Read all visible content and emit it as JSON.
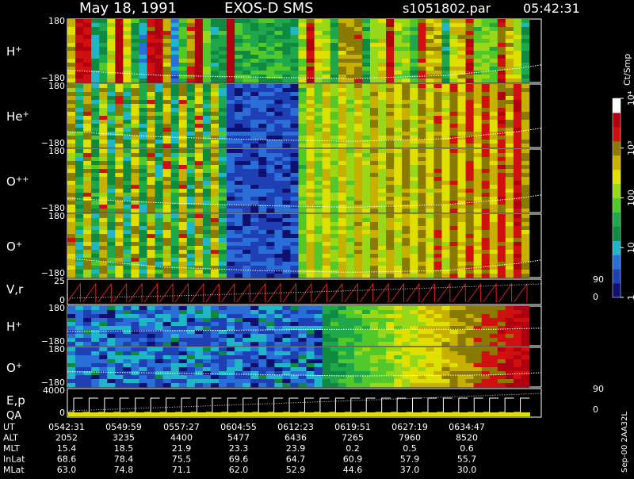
{
  "header": {
    "date": "May 18, 1991",
    "instrument": "EXOS-D SMS",
    "file": "s1051802.par",
    "time": "05:42:31"
  },
  "colorbar": {
    "unit": "Ct/Smp",
    "ticks": [
      {
        "label": "1",
        "value": 1
      },
      {
        "label": "10",
        "value": 10
      },
      {
        "label": "100",
        "value": 100
      },
      {
        "label": "10³",
        "value": 1000
      },
      {
        "label": "10⁴",
        "value": 10000
      }
    ]
  },
  "chart_data": {
    "type": "heatmap",
    "panels": [
      {
        "id": "h_plus_1",
        "label": "H",
        "sup": "+",
        "ytop": "180",
        "ybot": "−180",
        "ymax": 180,
        "ymin": -180,
        "intensity": "high",
        "curve": [
          [
            0,
            -110
          ],
          [
            20,
            -140
          ],
          [
            40,
            -150
          ],
          [
            60,
            -158
          ],
          [
            80,
            -140
          ],
          [
            95,
            -100
          ],
          [
            100,
            -80
          ]
        ]
      },
      {
        "id": "he_plus",
        "label": "He",
        "sup": "+",
        "ytop": "180",
        "ybot": "−180",
        "ymax": 180,
        "ymin": -180,
        "intensity": "mid",
        "curve": [
          [
            0,
            -90
          ],
          [
            20,
            -120
          ],
          [
            40,
            -135
          ],
          [
            60,
            -145
          ],
          [
            80,
            -130
          ],
          [
            95,
            -90
          ],
          [
            100,
            -70
          ]
        ]
      },
      {
        "id": "o_plusplus",
        "label": "O",
        "sup": "++",
        "ytop": "180",
        "ybot": "−180",
        "ymax": 180,
        "ymin": -180,
        "intensity": "mid",
        "curve": [
          [
            0,
            -100
          ],
          [
            20,
            -125
          ],
          [
            40,
            -140
          ],
          [
            60,
            -150
          ],
          [
            80,
            -135
          ],
          [
            95,
            -100
          ],
          [
            100,
            -80
          ]
        ]
      },
      {
        "id": "o_plus_1",
        "label": "O",
        "sup": "+",
        "ytop": "180",
        "ybot": "−180",
        "ymax": 180,
        "ymin": -180,
        "intensity": "mid",
        "curve": [
          [
            0,
            -70
          ],
          [
            20,
            -120
          ],
          [
            40,
            -140
          ],
          [
            60,
            -150
          ],
          [
            80,
            -140
          ],
          [
            95,
            -100
          ],
          [
            100,
            -80
          ]
        ]
      },
      {
        "id": "vr",
        "label": "V,r",
        "sup": "",
        "ytop": "25",
        "ybot": "0",
        "ytop_r": "90",
        "ybot_r": "0",
        "type": "line"
      },
      {
        "id": "h_plus_2",
        "label": "H",
        "sup": "+",
        "ytop": "180",
        "ybot": "−180",
        "ymax": 180,
        "ymin": -180,
        "intensity": "low",
        "curve": [
          [
            0,
            -50
          ],
          [
            30,
            -40
          ],
          [
            60,
            -30
          ],
          [
            90,
            -30
          ],
          [
            100,
            -20
          ]
        ]
      },
      {
        "id": "o_plus_2",
        "label": "O",
        "sup": "+",
        "ytop": "180",
        "ybot": "−180",
        "ymax": 180,
        "ymin": -180,
        "intensity": "low",
        "curve": [
          [
            0,
            -40
          ],
          [
            30,
            -60
          ],
          [
            60,
            -80
          ],
          [
            90,
            -70
          ],
          [
            100,
            -50
          ]
        ]
      },
      {
        "id": "ep",
        "label": "E,p",
        "sup": "",
        "ytop": "4000",
        "ybot": "0",
        "ytop_r": "90",
        "ybot_r": "0",
        "label2": "QA",
        "type": "line"
      }
    ],
    "table": {
      "rows": [
        {
          "name": "UT",
          "values": [
            "0542:31",
            "0549:59",
            "0557:27",
            "0604:55",
            "0612:23",
            "0619:51",
            "0627:19",
            "0634:47"
          ]
        },
        {
          "name": "ALT",
          "values": [
            "2052",
            "3235",
            "4400",
            "5477",
            "6436",
            "7265",
            "7960",
            "8520"
          ]
        },
        {
          "name": "MLT",
          "values": [
            "15.4",
            "18.5",
            "21.9",
            "23.3",
            "23.9",
            "0.2",
            "0.5",
            "0.6"
          ]
        },
        {
          "name": "InLat",
          "values": [
            "68.6",
            "78.4",
            "75.5",
            "69.6",
            "64.7",
            "60.9",
            "57.9",
            "55.7"
          ]
        },
        {
          "name": "MLat",
          "values": [
            "63.0",
            "74.8",
            "71.1",
            "62.0",
            "52.9",
            "44.6",
            "37.0",
            "30.0"
          ]
        }
      ]
    },
    "footer_note": "Sep-00  2AA32L"
  }
}
